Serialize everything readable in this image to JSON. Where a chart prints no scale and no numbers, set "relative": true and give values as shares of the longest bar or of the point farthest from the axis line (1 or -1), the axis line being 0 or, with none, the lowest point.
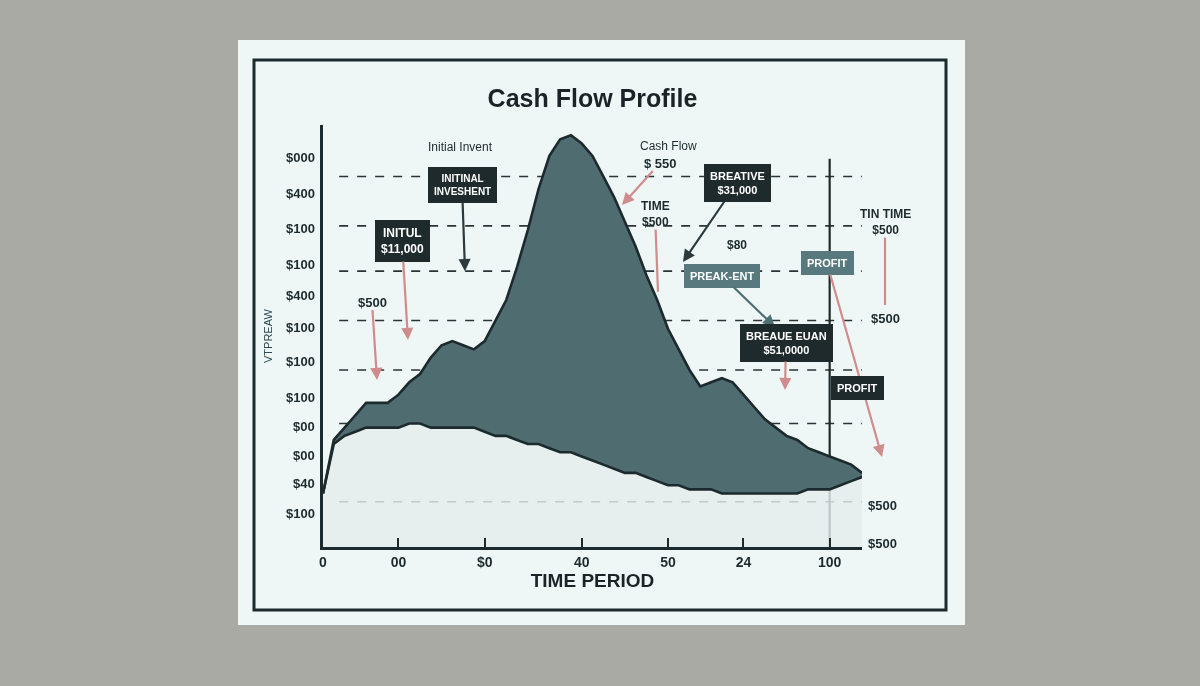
{
  "chart_data": {
    "type": "area",
    "relative": true,
    "title": "Cash Flow Profile",
    "xlabel": "TIME PERIOD",
    "ylabel": "VTPREAW",
    "categories": [
      "0",
      null,
      null,
      null,
      null,
      null,
      null,
      "00",
      null,
      null,
      null,
      null,
      null,
      null,
      null,
      "$0",
      null,
      null,
      null,
      null,
      null,
      null,
      null,
      null,
      "40",
      null,
      null,
      null,
      null,
      null,
      null,
      null,
      "50",
      null,
      null,
      null,
      null,
      null,
      null,
      "24",
      null,
      null,
      null,
      null,
      null,
      null,
      null,
      "100",
      null,
      null,
      null
    ],
    "series": [
      {
        "color": "#e4ecec",
        "values": [
          0.13,
          0.25,
          0.27,
          0.28,
          0.29,
          0.29,
          0.29,
          0.29,
          0.3,
          0.3,
          0.29,
          0.29,
          0.29,
          0.29,
          0.29,
          0.28,
          0.27,
          0.27,
          0.26,
          0.25,
          0.25,
          0.24,
          0.23,
          0.23,
          0.22,
          0.21,
          0.2,
          0.19,
          0.18,
          0.18,
          0.17,
          0.16,
          0.15,
          0.15,
          0.14,
          0.14,
          0.14,
          0.13,
          0.13,
          0.13,
          0.13,
          0.13,
          0.13,
          0.13,
          0.13,
          0.14,
          0.14,
          0.14,
          0.15,
          0.16,
          0.17
        ]
      },
      {
        "color": "#4f6d70",
        "values": [
          0.13,
          0.26,
          0.29,
          0.32,
          0.35,
          0.35,
          0.35,
          0.37,
          0.4,
          0.42,
          0.46,
          0.49,
          0.5,
          0.49,
          0.48,
          0.5,
          0.55,
          0.6,
          0.68,
          0.77,
          0.87,
          0.95,
          0.99,
          1.0,
          0.98,
          0.95,
          0.9,
          0.85,
          0.79,
          0.73,
          0.66,
          0.6,
          0.53,
          0.48,
          0.43,
          0.39,
          0.4,
          0.41,
          0.4,
          0.37,
          0.34,
          0.31,
          0.29,
          0.27,
          0.26,
          0.24,
          0.23,
          0.22,
          0.21,
          0.2,
          0.18
        ]
      }
    ],
    "ref_lines": [
      {
        "axis": "y",
        "value": 0.9,
        "line_style": "dashed",
        "color": "#2a3436"
      },
      {
        "axis": "y",
        "value": 0.78,
        "line_style": "dashed",
        "color": "#2a3436"
      },
      {
        "axis": "y",
        "value": 0.67,
        "line_style": "dashed",
        "color": "#2a3436"
      },
      {
        "axis": "y",
        "value": 0.55,
        "line_style": "dashed",
        "color": "#2a3436"
      },
      {
        "axis": "y",
        "value": 0.43,
        "line_style": "dashed",
        "color": "#2a3436"
      },
      {
        "axis": "y",
        "value": 0.3,
        "line_style": "dashed",
        "color": "#2a3436"
      },
      {
        "axis": "y",
        "value": 0.11,
        "line_style": "dashed",
        "color": "#2a3436"
      },
      {
        "axis": "x",
        "value": "100",
        "line_style": "solid",
        "color": "#1e2a2c"
      }
    ],
    "annotations": [
      "$000",
      "$400",
      "$100",
      "$100",
      "$400",
      "$100",
      "$100",
      "$100",
      "$00",
      "$00",
      "$40",
      "$100",
      "Initial Invent",
      "Cash Flow",
      "$ 550",
      {
        "text": "INITINAL\nINVESHENT",
        "y": 0.67
      },
      "INITUL\n$11,000",
      "$500",
      "BREATIVE\n$31,000",
      {
        "text": "TIME\n$500",
        "y": 0.62
      },
      "$80",
      "PREAK-ENT",
      "PROFIT",
      "TIN TIME\n$500",
      "$500",
      "BREAUE EUAN\n$51,0000",
      "PROFIT",
      "$500",
      "$500"
    ]
  }
}
